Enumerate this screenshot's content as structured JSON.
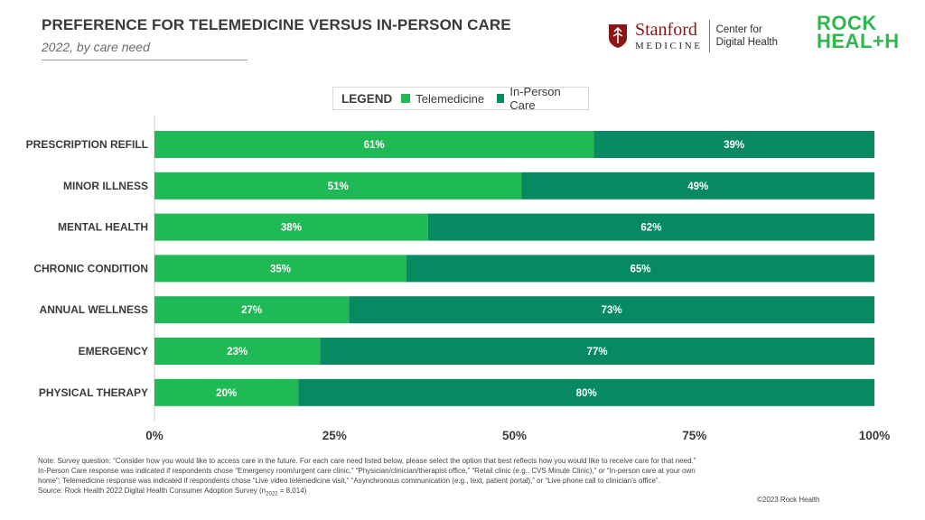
{
  "header": {
    "title": "PREFERENCE FOR TELEMEDICINE VERSUS IN-PERSON CARE",
    "subtitle": "2022, by care need"
  },
  "logos": {
    "stanford_name": "Stanford",
    "stanford_sub": "MEDICINE",
    "center_line1": "Center for",
    "center_line2": "Digital Health",
    "rock_line1": "ROCK",
    "rock_line2": "HEAL+H"
  },
  "legend": {
    "title": "LEGEND",
    "items": [
      "Telemedicine",
      "In-Person Care"
    ]
  },
  "colors": {
    "telemedicine": "#1fba55",
    "in_person": "#078a61",
    "axis": "#cccccc"
  },
  "chart_data": {
    "type": "bar",
    "orientation": "horizontal",
    "stacked": true,
    "categories": [
      "PRESCRIPTION REFILL",
      "MINOR ILLNESS",
      "MENTAL HEALTH",
      "CHRONIC CONDITION",
      "ANNUAL WELLNESS",
      "EMERGENCY",
      "PHYSICAL THERAPY"
    ],
    "series": [
      {
        "name": "Telemedicine",
        "values": [
          61,
          51,
          38,
          35,
          27,
          23,
          20
        ]
      },
      {
        "name": "In-Person Care",
        "values": [
          39,
          49,
          62,
          65,
          73,
          77,
          80
        ]
      }
    ],
    "value_labels": [
      [
        "61%",
        "51%",
        "38%",
        "35%",
        "27%",
        "23%",
        "20%"
      ],
      [
        "39%",
        "49%",
        "62%",
        "65%",
        "73%",
        "77%",
        "80%"
      ]
    ],
    "xlim": [
      0,
      100
    ],
    "xticks": [
      0,
      25,
      50,
      75,
      100
    ],
    "xtick_labels": [
      "0%",
      "25%",
      "50%",
      "75%",
      "100%"
    ],
    "grid": false,
    "legend_position": "top-center"
  },
  "footer": {
    "note_line1": "Note: Survey question: “Consider how you would like to access care in the future. For each care need listed below, please select the option that best reflects how you would like to receive care for that need.”",
    "note_line2": "In-Person Care response was indicated if respondents chose “Emergency room/urgent care clinic,” “Physician/clinician/therapist office,” “Retail clinic (e.g., CVS Minute Clinic),” or “In-person care at your own",
    "note_line3": "home”; Telemedicine response was indicated if respondents chose “Live video telemedicine visit,” “Asynchronous communication (e.g., text, patient portal),” or “Live phone call to clinician’s office”.",
    "source_prefix": "Source: Rock Health 2022 Digital Health Consumer Adoption Survey (n",
    "source_sub": "2022",
    "source_suffix": " = 8,014)",
    "copyright": "©2023 Rock Health"
  }
}
